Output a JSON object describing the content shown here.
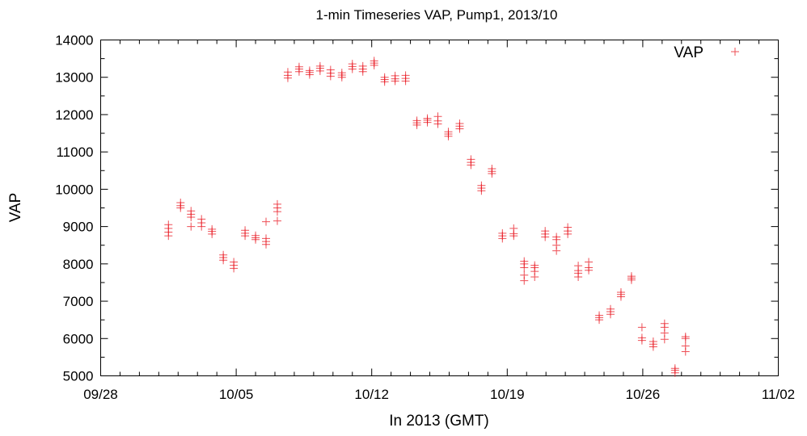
{
  "chart_data": {
    "type": "scatter",
    "title": "1-min Timeseries VAP, Pump1, 2013/10",
    "xlabel": "In 2013 (GMT)",
    "ylabel": "VAP",
    "xlim": [
      "2013-09-28",
      "2013-11-02"
    ],
    "ylim": [
      5000,
      14000
    ],
    "x_ticks": [
      {
        "date": "2013-09-28",
        "label": "09/28"
      },
      {
        "date": "2013-10-05",
        "label": "10/05"
      },
      {
        "date": "2013-10-12",
        "label": "10/12"
      },
      {
        "date": "2013-10-19",
        "label": "10/19"
      },
      {
        "date": "2013-10-26",
        "label": "10/26"
      },
      {
        "date": "2013-11-02",
        "label": "11/02"
      }
    ],
    "y_ticks": [
      5000,
      6000,
      7000,
      8000,
      9000,
      10000,
      11000,
      12000,
      13000,
      14000
    ],
    "minor_x_step_days": 1,
    "minor_y_step": 500,
    "grid": false,
    "legend": {
      "position": "top-right",
      "entries": [
        {
          "name": "VAP",
          "marker": "+",
          "color": "#e8141e"
        }
      ]
    },
    "series": [
      {
        "name": "VAP",
        "color": "#e8141e",
        "marker": "+",
        "points": [
          {
            "x": "2013-10-01 12:00",
            "y": 8750
          },
          {
            "x": "2013-10-01 12:00",
            "y": 8850
          },
          {
            "x": "2013-10-01 12:00",
            "y": 8950
          },
          {
            "x": "2013-10-01 12:00",
            "y": 9050
          },
          {
            "x": "2013-10-02 03:00",
            "y": 9500
          },
          {
            "x": "2013-10-02 03:00",
            "y": 9560
          },
          {
            "x": "2013-10-02 03:00",
            "y": 9640
          },
          {
            "x": "2013-10-02 16:00",
            "y": 9000
          },
          {
            "x": "2013-10-02 16:00",
            "y": 9250
          },
          {
            "x": "2013-10-02 16:00",
            "y": 9330
          },
          {
            "x": "2013-10-02 16:00",
            "y": 9420
          },
          {
            "x": "2013-10-03 05:00",
            "y": 9000
          },
          {
            "x": "2013-10-03 05:00",
            "y": 9100
          },
          {
            "x": "2013-10-03 05:00",
            "y": 9200
          },
          {
            "x": "2013-10-03 18:00",
            "y": 8800
          },
          {
            "x": "2013-10-03 18:00",
            "y": 8870
          },
          {
            "x": "2013-10-03 18:00",
            "y": 8930
          },
          {
            "x": "2013-10-04 08:00",
            "y": 8100
          },
          {
            "x": "2013-10-04 08:00",
            "y": 8170
          },
          {
            "x": "2013-10-04 08:00",
            "y": 8240
          },
          {
            "x": "2013-10-04 21:00",
            "y": 7880
          },
          {
            "x": "2013-10-04 21:00",
            "y": 7960
          },
          {
            "x": "2013-10-04 21:00",
            "y": 8050
          },
          {
            "x": "2013-10-05 11:00",
            "y": 8750
          },
          {
            "x": "2013-10-05 11:00",
            "y": 8820
          },
          {
            "x": "2013-10-05 11:00",
            "y": 8900
          },
          {
            "x": "2013-10-06 00:00",
            "y": 8650
          },
          {
            "x": "2013-10-06 00:00",
            "y": 8700
          },
          {
            "x": "2013-10-06 00:00",
            "y": 8760
          },
          {
            "x": "2013-10-06 13:00",
            "y": 8520
          },
          {
            "x": "2013-10-06 13:00",
            "y": 8600
          },
          {
            "x": "2013-10-06 13:00",
            "y": 8680
          },
          {
            "x": "2013-10-06 13:00",
            "y": 9130
          },
          {
            "x": "2013-10-07 03:00",
            "y": 9150
          },
          {
            "x": "2013-10-07 03:00",
            "y": 9400
          },
          {
            "x": "2013-10-07 03:00",
            "y": 9500
          },
          {
            "x": "2013-10-07 03:00",
            "y": 9600
          },
          {
            "x": "2013-10-07 16:00",
            "y": 12980
          },
          {
            "x": "2013-10-07 16:00",
            "y": 13050
          },
          {
            "x": "2013-10-07 16:00",
            "y": 13140
          },
          {
            "x": "2013-10-08 06:00",
            "y": 13150
          },
          {
            "x": "2013-10-08 06:00",
            "y": 13220
          },
          {
            "x": "2013-10-08 06:00",
            "y": 13280
          },
          {
            "x": "2013-10-08 19:00",
            "y": 13070
          },
          {
            "x": "2013-10-08 19:00",
            "y": 13130
          },
          {
            "x": "2013-10-08 19:00",
            "y": 13180
          },
          {
            "x": "2013-10-09 08:00",
            "y": 13170
          },
          {
            "x": "2013-10-09 08:00",
            "y": 13240
          },
          {
            "x": "2013-10-09 08:00",
            "y": 13300
          },
          {
            "x": "2013-10-09 21:00",
            "y": 13030
          },
          {
            "x": "2013-10-09 21:00",
            "y": 13110
          },
          {
            "x": "2013-10-09 21:00",
            "y": 13200
          },
          {
            "x": "2013-10-10 11:00",
            "y": 13000
          },
          {
            "x": "2013-10-10 11:00",
            "y": 13060
          },
          {
            "x": "2013-10-10 11:00",
            "y": 13120
          },
          {
            "x": "2013-10-11 00:00",
            "y": 13220
          },
          {
            "x": "2013-10-11 00:00",
            "y": 13290
          },
          {
            "x": "2013-10-11 00:00",
            "y": 13360
          },
          {
            "x": "2013-10-11 13:00",
            "y": 13150
          },
          {
            "x": "2013-10-11 13:00",
            "y": 13220
          },
          {
            "x": "2013-10-11 13:00",
            "y": 13300
          },
          {
            "x": "2013-10-12 03:00",
            "y": 13320
          },
          {
            "x": "2013-10-12 03:00",
            "y": 13380
          },
          {
            "x": "2013-10-12 03:00",
            "y": 13440
          },
          {
            "x": "2013-10-12 16:00",
            "y": 12880
          },
          {
            "x": "2013-10-12 16:00",
            "y": 12940
          },
          {
            "x": "2013-10-12 16:00",
            "y": 13000
          },
          {
            "x": "2013-10-13 05:00",
            "y": 12900
          },
          {
            "x": "2013-10-13 05:00",
            "y": 12960
          },
          {
            "x": "2013-10-13 05:00",
            "y": 13040
          },
          {
            "x": "2013-10-13 18:00",
            "y": 12900
          },
          {
            "x": "2013-10-13 18:00",
            "y": 12970
          },
          {
            "x": "2013-10-13 18:00",
            "y": 13050
          },
          {
            "x": "2013-10-14 08:00",
            "y": 11720
          },
          {
            "x": "2013-10-14 08:00",
            "y": 11780
          },
          {
            "x": "2013-10-14 08:00",
            "y": 11840
          },
          {
            "x": "2013-10-14 21:00",
            "y": 11790
          },
          {
            "x": "2013-10-14 21:00",
            "y": 11850
          },
          {
            "x": "2013-10-14 21:00",
            "y": 11900
          },
          {
            "x": "2013-10-15 10:00",
            "y": 11750
          },
          {
            "x": "2013-10-15 10:00",
            "y": 11830
          },
          {
            "x": "2013-10-15 10:00",
            "y": 11950
          },
          {
            "x": "2013-10-15 23:00",
            "y": 11420
          },
          {
            "x": "2013-10-15 23:00",
            "y": 11480
          },
          {
            "x": "2013-10-15 23:00",
            "y": 11540
          },
          {
            "x": "2013-10-16 13:00",
            "y": 11620
          },
          {
            "x": "2013-10-16 13:00",
            "y": 11690
          },
          {
            "x": "2013-10-16 13:00",
            "y": 11760
          },
          {
            "x": "2013-10-17 03:00",
            "y": 10650
          },
          {
            "x": "2013-10-17 03:00",
            "y": 10720
          },
          {
            "x": "2013-10-17 03:00",
            "y": 10800
          },
          {
            "x": "2013-10-17 16:00",
            "y": 9960
          },
          {
            "x": "2013-10-17 16:00",
            "y": 10030
          },
          {
            "x": "2013-10-17 16:00",
            "y": 10100
          },
          {
            "x": "2013-10-18 05:00",
            "y": 10420
          },
          {
            "x": "2013-10-18 05:00",
            "y": 10480
          },
          {
            "x": "2013-10-18 05:00",
            "y": 10550
          },
          {
            "x": "2013-10-18 18:00",
            "y": 8680
          },
          {
            "x": "2013-10-18 18:00",
            "y": 8750
          },
          {
            "x": "2013-10-18 18:00",
            "y": 8820
          },
          {
            "x": "2013-10-19 08:00",
            "y": 8750
          },
          {
            "x": "2013-10-19 08:00",
            "y": 8810
          },
          {
            "x": "2013-10-19 08:00",
            "y": 8950
          },
          {
            "x": "2013-10-19 21:00",
            "y": 7550
          },
          {
            "x": "2013-10-19 21:00",
            "y": 7700
          },
          {
            "x": "2013-10-19 21:00",
            "y": 7900
          },
          {
            "x": "2013-10-19 21:00",
            "y": 8000
          },
          {
            "x": "2013-10-19 21:00",
            "y": 8070
          },
          {
            "x": "2013-10-20 10:00",
            "y": 7650
          },
          {
            "x": "2013-10-20 10:00",
            "y": 7800
          },
          {
            "x": "2013-10-20 10:00",
            "y": 7900
          },
          {
            "x": "2013-10-20 10:00",
            "y": 7960
          },
          {
            "x": "2013-10-20 23:00",
            "y": 8720
          },
          {
            "x": "2013-10-20 23:00",
            "y": 8800
          },
          {
            "x": "2013-10-20 23:00",
            "y": 8880
          },
          {
            "x": "2013-10-21 13:00",
            "y": 8350
          },
          {
            "x": "2013-10-21 13:00",
            "y": 8500
          },
          {
            "x": "2013-10-21 13:00",
            "y": 8650
          },
          {
            "x": "2013-10-21 13:00",
            "y": 8720
          },
          {
            "x": "2013-10-22 03:00",
            "y": 8800
          },
          {
            "x": "2013-10-22 03:00",
            "y": 8880
          },
          {
            "x": "2013-10-22 03:00",
            "y": 8980
          },
          {
            "x": "2013-10-22 16:00",
            "y": 7650
          },
          {
            "x": "2013-10-22 16:00",
            "y": 7750
          },
          {
            "x": "2013-10-22 16:00",
            "y": 7820
          },
          {
            "x": "2013-10-22 16:00",
            "y": 7950
          },
          {
            "x": "2013-10-23 05:00",
            "y": 7830
          },
          {
            "x": "2013-10-23 05:00",
            "y": 7900
          },
          {
            "x": "2013-10-23 05:00",
            "y": 8050
          },
          {
            "x": "2013-10-23 18:00",
            "y": 6500
          },
          {
            "x": "2013-10-23 18:00",
            "y": 6560
          },
          {
            "x": "2013-10-23 18:00",
            "y": 6620
          },
          {
            "x": "2013-10-24 08:00",
            "y": 6650
          },
          {
            "x": "2013-10-24 08:00",
            "y": 6720
          },
          {
            "x": "2013-10-24 08:00",
            "y": 6790
          },
          {
            "x": "2013-10-24 21:00",
            "y": 7120
          },
          {
            "x": "2013-10-24 21:00",
            "y": 7180
          },
          {
            "x": "2013-10-24 21:00",
            "y": 7240
          },
          {
            "x": "2013-10-25 10:00",
            "y": 7570
          },
          {
            "x": "2013-10-25 10:00",
            "y": 7620
          },
          {
            "x": "2013-10-25 10:00",
            "y": 7670
          },
          {
            "x": "2013-10-25 23:00",
            "y": 5950
          },
          {
            "x": "2013-10-25 23:00",
            "y": 6020
          },
          {
            "x": "2013-10-25 23:00",
            "y": 6300
          },
          {
            "x": "2013-10-26 13:00",
            "y": 5780
          },
          {
            "x": "2013-10-26 13:00",
            "y": 5850
          },
          {
            "x": "2013-10-26 13:00",
            "y": 5920
          },
          {
            "x": "2013-10-27 03:00",
            "y": 5980
          },
          {
            "x": "2013-10-27 03:00",
            "y": 6150
          },
          {
            "x": "2013-10-27 03:00",
            "y": 6300
          },
          {
            "x": "2013-10-27 03:00",
            "y": 6400
          },
          {
            "x": "2013-10-27 16:00",
            "y": 5080
          },
          {
            "x": "2013-10-27 16:00",
            "y": 5150
          },
          {
            "x": "2013-10-27 16:00",
            "y": 5200
          },
          {
            "x": "2013-10-28 05:00",
            "y": 5650
          },
          {
            "x": "2013-10-28 05:00",
            "y": 5800
          },
          {
            "x": "2013-10-28 05:00",
            "y": 6000
          },
          {
            "x": "2013-10-28 05:00",
            "y": 6050
          }
        ]
      }
    ]
  }
}
